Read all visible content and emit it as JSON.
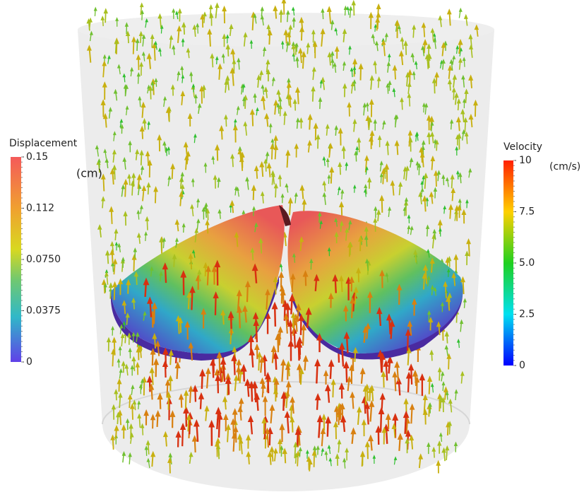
{
  "colorbars": [
    {
      "title": "Displacement",
      "unit": "(cm)",
      "ticks": [
        "0.15",
        "0.112",
        "0.0750",
        "0.0375",
        "0"
      ]
    },
    {
      "title": "Velocity",
      "unit": "(cm/s)",
      "ticks": [
        "10",
        "7.5",
        "5.0",
        "2.5",
        "0"
      ]
    }
  ]
}
